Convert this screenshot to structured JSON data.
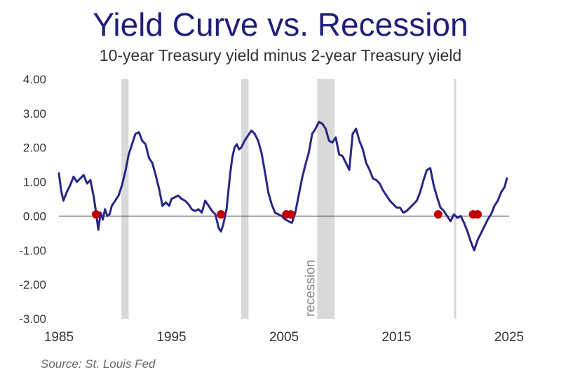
{
  "chart_data": {
    "type": "line",
    "title": "Yield Curve vs. Recession",
    "subtitle": "10-year Treasury yield minus 2-year Treasury yield",
    "source": "Source: St. Louis Fed",
    "xlim": [
      1985,
      2025
    ],
    "ylim": [
      -3.0,
      4.0
    ],
    "x_ticks": [
      "1985",
      "1995",
      "2005",
      "2015",
      "2025"
    ],
    "y_ticks": [
      "4.00",
      "3.00",
      "2.00",
      "1.00",
      "0.00",
      "-1.00",
      "-2.00",
      "-3.00"
    ],
    "grid": false,
    "line_color": "#262686",
    "marker_color": "#c00000",
    "recession_color": "#d9d9d9",
    "recession_label": "recession",
    "recessions": [
      {
        "start": 1990.55,
        "end": 1991.2
      },
      {
        "start": 2001.2,
        "end": 2001.85
      },
      {
        "start": 2007.95,
        "end": 2009.5
      },
      {
        "start": 2020.1,
        "end": 2020.3
      }
    ],
    "inversion_markers": [
      {
        "x": 1988.3,
        "y": 0.05
      },
      {
        "x": 1999.4,
        "y": 0.05
      },
      {
        "x": 2005.2,
        "y": 0.05
      },
      {
        "x": 2005.6,
        "y": 0.05
      },
      {
        "x": 2018.7,
        "y": 0.05
      },
      {
        "x": 2021.8,
        "y": 0.05
      },
      {
        "x": 2022.2,
        "y": 0.05
      }
    ],
    "series": [
      {
        "x": [
          1985.0,
          1985.2,
          1985.4,
          1985.7,
          1986.0,
          1986.3,
          1986.6,
          1986.9,
          1987.2,
          1987.5,
          1987.8,
          1988.1,
          1988.3,
          1988.5,
          1988.7,
          1988.9,
          1989.1,
          1989.3,
          1989.5,
          1989.7,
          1990.0,
          1990.3,
          1990.6,
          1990.9,
          1991.2,
          1991.5,
          1991.8,
          1992.1,
          1992.4,
          1992.7,
          1993.0,
          1993.3,
          1993.6,
          1993.9,
          1994.2,
          1994.5,
          1994.8,
          1995.0,
          1995.3,
          1995.6,
          1995.9,
          1996.2,
          1996.5,
          1996.8,
          1997.1,
          1997.4,
          1997.7,
          1998.0,
          1998.3,
          1998.6,
          1998.9,
          1999.2,
          1999.4,
          1999.6,
          1999.9,
          2000.2,
          2000.4,
          2000.6,
          2000.8,
          2001.0,
          2001.2,
          2001.5,
          2001.8,
          2002.1,
          2002.4,
          2002.7,
          2003.0,
          2003.3,
          2003.6,
          2003.9,
          2004.2,
          2004.5,
          2004.8,
          2005.1,
          2005.4,
          2005.7,
          2006.0,
          2006.3,
          2006.6,
          2006.9,
          2007.2,
          2007.5,
          2007.8,
          2008.1,
          2008.4,
          2008.7,
          2009.0,
          2009.3,
          2009.6,
          2009.9,
          2010.2,
          2010.5,
          2010.8,
          2011.1,
          2011.4,
          2011.7,
          2012.0,
          2012.3,
          2012.6,
          2012.9,
          2013.2,
          2013.5,
          2013.8,
          2014.1,
          2014.4,
          2014.7,
          2015.0,
          2015.3,
          2015.6,
          2015.9,
          2016.2,
          2016.5,
          2016.8,
          2017.1,
          2017.4,
          2017.7,
          2018.0,
          2018.3,
          2018.6,
          2018.9,
          2019.2,
          2019.5,
          2019.8,
          2020.1,
          2020.4,
          2020.7,
          2021.0,
          2021.3,
          2021.6,
          2021.9,
          2022.2,
          2022.5,
          2022.8,
          2023.1,
          2023.4,
          2023.7,
          2024.0,
          2024.3,
          2024.6,
          2024.8
        ],
        "y": [
          1.25,
          0.75,
          0.45,
          0.7,
          0.9,
          1.15,
          1.0,
          1.1,
          1.2,
          0.95,
          1.05,
          0.55,
          0.1,
          -0.4,
          0.1,
          -0.1,
          0.2,
          0.0,
          0.05,
          0.3,
          0.45,
          0.6,
          0.9,
          1.3,
          1.8,
          2.1,
          2.4,
          2.45,
          2.2,
          2.1,
          1.7,
          1.55,
          1.2,
          0.8,
          0.3,
          0.4,
          0.3,
          0.5,
          0.55,
          0.6,
          0.5,
          0.45,
          0.35,
          0.2,
          0.15,
          0.2,
          0.1,
          0.45,
          0.3,
          0.15,
          0.05,
          -0.35,
          -0.45,
          -0.25,
          0.2,
          1.2,
          1.7,
          2.0,
          2.1,
          1.95,
          2.0,
          2.2,
          2.35,
          2.5,
          2.4,
          2.2,
          1.85,
          1.3,
          0.7,
          0.35,
          0.1,
          0.05,
          0.0,
          -0.1,
          -0.15,
          -0.2,
          0.1,
          0.6,
          1.1,
          1.5,
          1.85,
          2.4,
          2.55,
          2.75,
          2.7,
          2.55,
          2.2,
          2.15,
          2.3,
          1.8,
          1.75,
          1.55,
          1.35,
          2.4,
          2.55,
          2.2,
          1.95,
          1.55,
          1.35,
          1.1,
          1.05,
          0.95,
          0.75,
          0.6,
          0.45,
          0.35,
          0.25,
          0.25,
          0.1,
          0.15,
          0.25,
          0.35,
          0.45,
          0.7,
          1.05,
          1.35,
          1.4,
          0.9,
          0.55,
          0.25,
          0.15,
          0.0,
          -0.15,
          0.05,
          -0.05,
          0.0,
          -0.2,
          -0.45,
          -0.75,
          -1.0,
          -0.7,
          -0.5,
          -0.3,
          -0.1,
          0.05,
          0.3,
          0.45,
          0.7,
          0.85,
          1.1
        ]
      }
    ]
  }
}
